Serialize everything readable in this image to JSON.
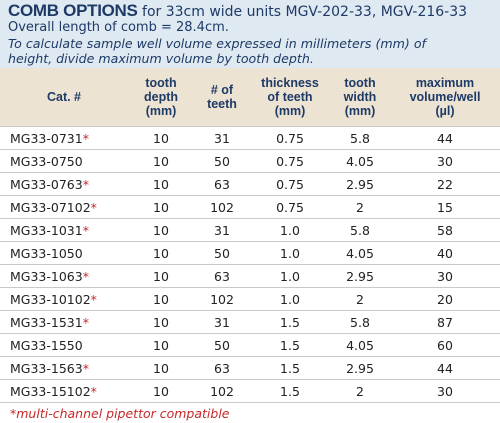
{
  "header": {
    "title": "COMB OPTIONS",
    "subtitle": "for 33cm wide units MGV-202-33, MGV-216-33",
    "length": "Overall length of comb = 28.4cm.",
    "note": [
      "To calculate sample well volume expressed in millimeters (mm) of",
      "height, divide maximum volume by tooth depth."
    ]
  },
  "table": {
    "columns": [
      [
        "Cat. #"
      ],
      [
        "tooth",
        "depth",
        "(mm)"
      ],
      [
        "# of",
        "teeth"
      ],
      [
        "thickness",
        "of teeth",
        "(mm)"
      ],
      [
        "tooth",
        "width",
        "(mm)"
      ],
      [
        "maximum",
        "volume/well",
        "(µl)"
      ]
    ],
    "rows": [
      [
        {
          "cat": "MG33-0731",
          "mark": "*"
        },
        "10",
        "31",
        "0.75",
        "5.8",
        "44"
      ],
      [
        {
          "cat": "MG33-0750"
        },
        "10",
        "50",
        "0.75",
        "4.05",
        "30"
      ],
      [
        {
          "cat": "MG33-0763",
          "mark": "*"
        },
        "10",
        "63",
        "0.75",
        "2.95",
        "22"
      ],
      [
        {
          "cat": "MG33-07102",
          "mark": "*"
        },
        "10",
        "102",
        "0.75",
        "2",
        "15"
      ],
      [
        {
          "cat": "MG33-1031",
          "mark": "*"
        },
        "10",
        "31",
        "1.0",
        "5.8",
        "58"
      ],
      [
        {
          "cat": "MG33-1050"
        },
        "10",
        "50",
        "1.0",
        "4.05",
        "40"
      ],
      [
        {
          "cat": "MG33-1063",
          "mark": "*"
        },
        "10",
        "63",
        "1.0",
        "2.95",
        "30"
      ],
      [
        {
          "cat": "MG33-10102",
          "mark": "*"
        },
        "10",
        "102",
        "1.0",
        "2",
        "20"
      ],
      [
        {
          "cat": "MG33-1531",
          "mark": "*"
        },
        "10",
        "31",
        "1.5",
        "5.8",
        "87"
      ],
      [
        {
          "cat": "MG33-1550"
        },
        "10",
        "50",
        "1.5",
        "4.05",
        "60"
      ],
      [
        {
          "cat": "MG33-1563",
          "mark": "*"
        },
        "10",
        "63",
        "1.5",
        "2.95",
        "44"
      ],
      [
        {
          "cat": "MG33-15102",
          "mark": "*"
        },
        "10",
        "102",
        "1.5",
        "2",
        "30"
      ]
    ]
  },
  "footnote": "*multi-channel pipettor compatible"
}
